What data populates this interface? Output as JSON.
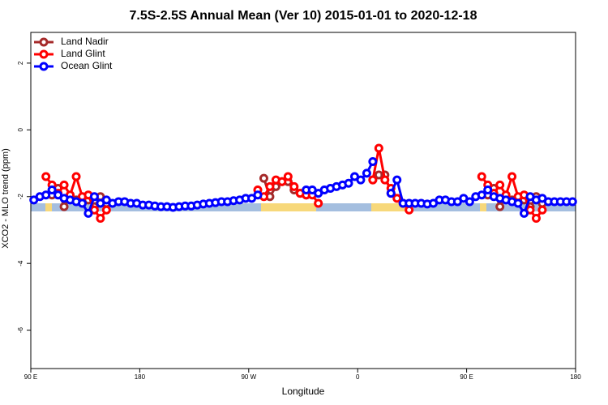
{
  "chart_data": {
    "type": "line",
    "title": "7.5S-2.5S Annual Mean (Ver 10)   2015-01-01 to 2020-12-18",
    "x_label": "Longitude",
    "y_label": "XCO2 - MLO trend (ppm)",
    "x": [
      92.5,
      97.5,
      102.5,
      107.5,
      112.5,
      117.5,
      122.5,
      127.5,
      132.5,
      137.5,
      142.5,
      147.5,
      152.5,
      157.5,
      162.5,
      167.5,
      172.5,
      177.5,
      182.5,
      187.5,
      192.5,
      197.5,
      202.5,
      207.5,
      212.5,
      217.5,
      222.5,
      227.5,
      232.5,
      237.5,
      242.5,
      247.5,
      252.5,
      257.5,
      262.5,
      267.5,
      272.5,
      277.5,
      282.5,
      287.5,
      292.5,
      297.5,
      302.5,
      307.5,
      312.5,
      317.5,
      322.5,
      327.5,
      332.5,
      337.5,
      342.5,
      347.5,
      352.5,
      357.5,
      362.5,
      367.5,
      372.5,
      377.5,
      382.5,
      387.5,
      392.5,
      397.5,
      402.5,
      407.5,
      412.5,
      417.5,
      422.5,
      427.5,
      432.5,
      437.5,
      442.5,
      447.5,
      452.5,
      457.5,
      462.5,
      467.5,
      472.5,
      477.5,
      482.5,
      487.5,
      492.5,
      497.5,
      502.5,
      507.5,
      512.5,
      517.5,
      522.5,
      527.5,
      532.5,
      537.5
    ],
    "series": [
      {
        "name": "Land Nadir",
        "color": "#a52a2a",
        "values": [
          null,
          null,
          null,
          -1.95,
          -1.75,
          -2.3,
          -2.0,
          -2.1,
          -2.05,
          -2.1,
          -2.3,
          -2.0,
          -2.2,
          null,
          null,
          null,
          null,
          null,
          null,
          null,
          null,
          null,
          null,
          null,
          null,
          null,
          null,
          null,
          null,
          null,
          null,
          null,
          null,
          null,
          null,
          null,
          null,
          null,
          -1.45,
          -2.0,
          -1.7,
          -1.55,
          -1.55,
          -1.8,
          -1.9,
          -1.95,
          null,
          null,
          null,
          null,
          null,
          null,
          null,
          null,
          null,
          null,
          -1.5,
          -1.35,
          -1.35,
          -1.9,
          null,
          null,
          null,
          null,
          null,
          null,
          null,
          null,
          null,
          null,
          null,
          null,
          null,
          null,
          null,
          -1.95,
          -1.75,
          -2.3,
          -2.0,
          -2.1,
          -2.05,
          -2.1,
          -2.3,
          -2.0,
          -2.2,
          null,
          null,
          null,
          null,
          null
        ]
      },
      {
        "name": "Land Glint",
        "color": "#ff0000",
        "values": [
          null,
          null,
          -1.4,
          -1.65,
          -1.9,
          -1.65,
          -1.95,
          -1.4,
          -2.0,
          -1.95,
          -2.4,
          -2.65,
          -2.4,
          null,
          null,
          null,
          null,
          null,
          null,
          null,
          null,
          null,
          null,
          null,
          null,
          null,
          null,
          null,
          null,
          null,
          null,
          null,
          null,
          null,
          null,
          null,
          null,
          -1.8,
          -2.0,
          -1.7,
          -1.5,
          -1.55,
          -1.4,
          -1.7,
          -1.9,
          -1.95,
          -1.95,
          -2.2,
          null,
          null,
          null,
          null,
          null,
          null,
          null,
          null,
          -1.5,
          -0.55,
          -1.5,
          -1.75,
          -2.05,
          -2.2,
          -2.4,
          null,
          null,
          null,
          null,
          null,
          null,
          null,
          null,
          null,
          null,
          null,
          -1.4,
          -1.65,
          -1.9,
          -1.65,
          -1.95,
          -1.4,
          -2.0,
          -1.95,
          -2.4,
          -2.65,
          -2.4,
          null,
          null,
          null,
          null,
          null
        ]
      },
      {
        "name": "Ocean Glint",
        "color": "#0000ff",
        "values": [
          -2.1,
          -2.0,
          -1.95,
          -1.8,
          -1.95,
          -2.05,
          -2.1,
          -2.15,
          -2.2,
          -2.5,
          -2.0,
          -2.2,
          -2.1,
          -2.2,
          -2.15,
          -2.15,
          -2.2,
          -2.2,
          -2.25,
          -2.25,
          -2.28,
          -2.3,
          -2.3,
          -2.32,
          -2.3,
          -2.28,
          -2.28,
          -2.25,
          -2.22,
          -2.2,
          -2.18,
          -2.15,
          -2.15,
          -2.12,
          -2.1,
          -2.05,
          -2.05,
          -1.95,
          null,
          null,
          null,
          null,
          null,
          null,
          null,
          -1.8,
          -1.8,
          -1.9,
          -1.8,
          -1.75,
          -1.7,
          -1.65,
          -1.6,
          -1.4,
          -1.5,
          -1.3,
          -0.95,
          null,
          null,
          -1.9,
          -1.5,
          -2.2,
          -2.2,
          -2.2,
          -2.2,
          -2.22,
          -2.2,
          -2.1,
          -2.1,
          -2.15,
          -2.15,
          -2.05,
          -2.15,
          -2.0,
          -1.95,
          -1.8,
          -2.0,
          -2.05,
          -2.1,
          -2.15,
          -2.2,
          -2.5,
          -2.0,
          -2.1,
          -2.05,
          -2.15,
          -2.15,
          -2.15,
          -2.15,
          -2.15
        ]
      }
    ],
    "xlim": [
      90,
      540
    ],
    "xticks": [
      {
        "value": 90,
        "label": "90 E"
      },
      {
        "value": 180,
        "label": "180"
      },
      {
        "value": 270,
        "label": "90 W"
      },
      {
        "value": 360,
        "label": "0"
      },
      {
        "value": 450,
        "label": "90 E"
      },
      {
        "value": 540,
        "label": "180"
      }
    ],
    "ylim": [
      -7.15,
      2.92
    ],
    "yticks": [
      -6,
      -4,
      -2,
      0,
      2
    ],
    "grid": false,
    "legend": "topleft"
  }
}
